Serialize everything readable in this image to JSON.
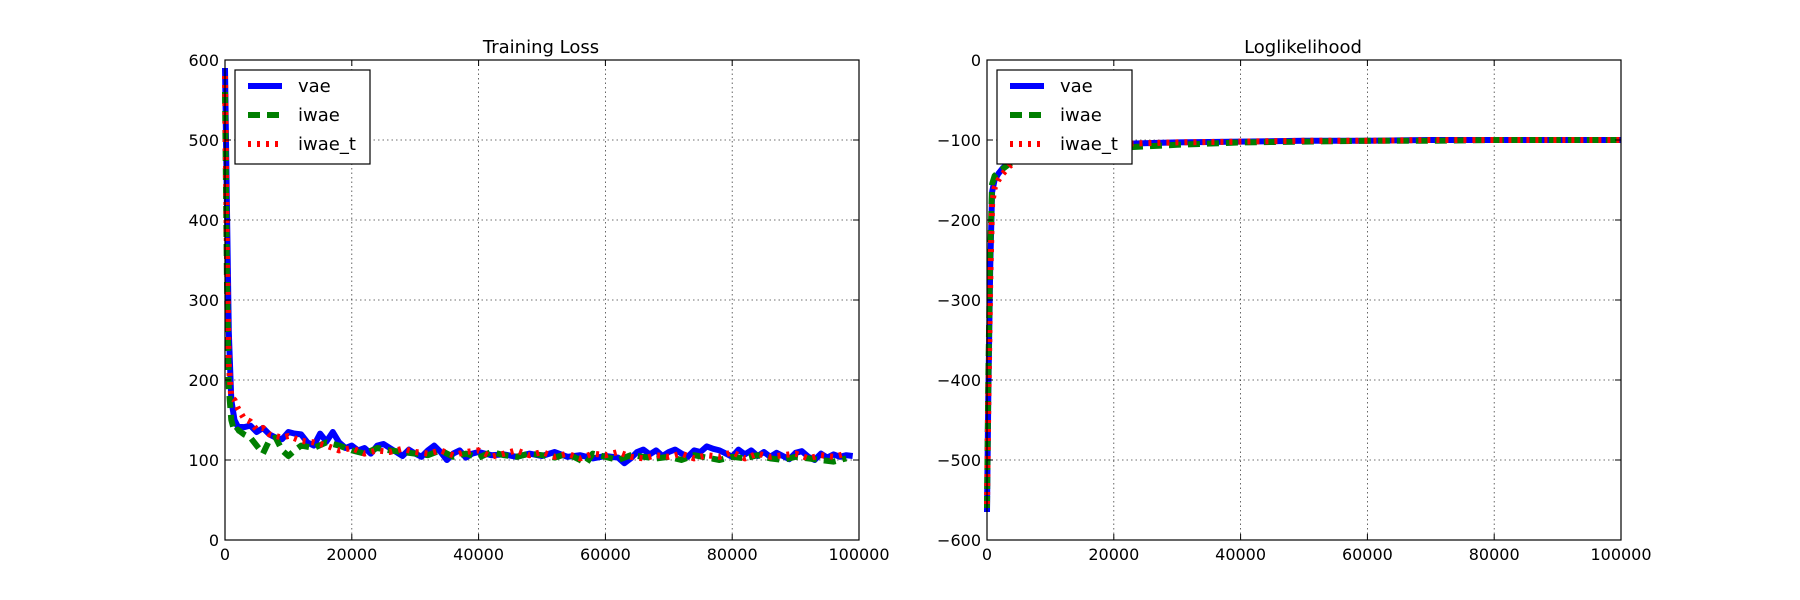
{
  "colors": {
    "vae": "#0000ff",
    "iwae": "#007f00",
    "iwae_t": "#ff0000"
  },
  "chart_data": [
    {
      "type": "line",
      "title": "Training Loss",
      "xlabel": "",
      "ylabel": "",
      "xlim": [
        0,
        100000
      ],
      "ylim": [
        0,
        600
      ],
      "xticks": [
        0,
        20000,
        40000,
        60000,
        80000,
        100000
      ],
      "xtick_labels": [
        "0",
        "20000",
        "40000",
        "60000",
        "80000",
        "100000"
      ],
      "yticks": [
        0,
        100,
        200,
        300,
        400,
        500,
        600
      ],
      "ytick_labels": [
        "0",
        "100",
        "200",
        "300",
        "400",
        "500",
        "600"
      ],
      "grid": true,
      "legend_position": "top-left",
      "series": [
        {
          "name": "vae",
          "style": "solid",
          "x": [
            0,
            300,
            600,
            1000,
            1500,
            2000,
            3000,
            4000,
            5000,
            6000,
            7000,
            8000,
            9000,
            10000,
            11000,
            12000,
            13000,
            14000,
            15000,
            16000,
            17000,
            18000,
            19000,
            20000,
            21000,
            22000,
            23000,
            24000,
            25000,
            26000,
            27000,
            28000,
            29000,
            30000,
            31000,
            32000,
            33000,
            34000,
            35000,
            36000,
            37000,
            38000,
            39000,
            40000,
            42000,
            44000,
            46000,
            48000,
            50000,
            52000,
            54000,
            56000,
            58000,
            60000,
            62000,
            63000,
            64000,
            65000,
            66000,
            67000,
            68000,
            69000,
            70000,
            71000,
            72000,
            73000,
            74000,
            75000,
            76000,
            77000,
            78000,
            79000,
            80000,
            81000,
            82000,
            83000,
            84000,
            85000,
            86000,
            87000,
            88000,
            89000,
            90000,
            91000,
            92000,
            93000,
            94000,
            95000,
            96000,
            97000,
            98000,
            99000
          ],
          "values": [
            590,
            420,
            260,
            175,
            150,
            142,
            141,
            143,
            135,
            140,
            132,
            128,
            126,
            135,
            133,
            132,
            122,
            118,
            133,
            123,
            135,
            122,
            115,
            118,
            112,
            115,
            108,
            118,
            120,
            115,
            110,
            105,
            113,
            108,
            104,
            112,
            118,
            110,
            100,
            108,
            112,
            103,
            108,
            110,
            106,
            107,
            104,
            108,
            105,
            110,
            104,
            106,
            102,
            105,
            103,
            96,
            102,
            110,
            113,
            107,
            112,
            105,
            110,
            113,
            108,
            104,
            112,
            110,
            117,
            114,
            112,
            108,
            104,
            113,
            107,
            112,
            105,
            110,
            104,
            109,
            105,
            101,
            109,
            111,
            104,
            100,
            108,
            103,
            107,
            104,
            106,
            105
          ]
        },
        {
          "name": "iwae",
          "style": "dashed",
          "x": [
            0,
            300,
            600,
            1000,
            1500,
            2000,
            3000,
            4000,
            5000,
            6000,
            7000,
            8000,
            9000,
            10000,
            11000,
            12000,
            14000,
            16000,
            18000,
            20000,
            22000,
            24000,
            26000,
            28000,
            30000,
            32000,
            34000,
            36000,
            38000,
            40000,
            42000,
            44000,
            46000,
            48000,
            50000,
            52000,
            54000,
            56000,
            57000,
            58000,
            60000,
            62000,
            64000,
            66000,
            68000,
            70000,
            72000,
            74000,
            76000,
            78000,
            80000,
            82000,
            84000,
            86000,
            88000,
            90000,
            92000,
            94000,
            96000,
            98000
          ],
          "values": [
            560,
            330,
            190,
            150,
            135,
            138,
            132,
            128,
            118,
            108,
            125,
            128,
            112,
            105,
            112,
            118,
            115,
            122,
            118,
            112,
            108,
            115,
            112,
            110,
            108,
            106,
            112,
            104,
            108,
            103,
            110,
            106,
            104,
            108,
            106,
            103,
            108,
            100,
            96,
            108,
            104,
            100,
            106,
            104,
            102,
            104,
            100,
            106,
            103,
            100,
            104,
            102,
            106,
            102,
            100,
            104,
            102,
            100,
            98,
            102
          ]
        },
        {
          "name": "iwae_t",
          "style": "dotted",
          "x": [
            0,
            300,
            600,
            1000,
            1500,
            2000,
            3000,
            4000,
            5000,
            6000,
            7000,
            8000,
            9000,
            10000,
            12000,
            14000,
            16000,
            18000,
            20000,
            22000,
            24000,
            26000,
            28000,
            30000,
            32000,
            34000,
            36000,
            38000,
            40000,
            42000,
            44000,
            46000,
            48000,
            50000,
            52000,
            54000,
            56000,
            58000,
            60000,
            62000,
            64000,
            66000,
            68000,
            70000,
            72000,
            74000,
            76000,
            78000,
            80000,
            82000,
            84000,
            86000,
            88000,
            90000,
            92000,
            94000,
            96000,
            98000
          ],
          "values": [
            580,
            360,
            220,
            178,
            175,
            165,
            152,
            148,
            138,
            140,
            132,
            130,
            128,
            130,
            124,
            122,
            118,
            112,
            115,
            108,
            112,
            110,
            114,
            110,
            108,
            112,
            106,
            110,
            112,
            104,
            108,
            112,
            106,
            110,
            104,
            108,
            102,
            108,
            106,
            110,
            104,
            102,
            106,
            104,
            108,
            102,
            106,
            104,
            110,
            102,
            108,
            104,
            106,
            108,
            102,
            106,
            104,
            108
          ]
        }
      ]
    },
    {
      "type": "line",
      "title": "Loglikelihood",
      "xlabel": "",
      "ylabel": "",
      "xlim": [
        0,
        100000
      ],
      "ylim": [
        -600,
        0
      ],
      "xticks": [
        0,
        20000,
        40000,
        60000,
        80000,
        100000
      ],
      "xtick_labels": [
        "0",
        "20000",
        "40000",
        "60000",
        "80000",
        "100000"
      ],
      "yticks": [
        -600,
        -500,
        -400,
        -300,
        -200,
        -100,
        0
      ],
      "ytick_labels": [
        "−600",
        "−500",
        "−400",
        "−300",
        "−200",
        "−100",
        "0"
      ],
      "grid": true,
      "legend_position": "top-left",
      "series": [
        {
          "name": "vae",
          "style": "solid",
          "x": [
            0,
            200,
            500,
            800,
            1200,
            1800,
            2500,
            3500,
            5000,
            7000,
            10000,
            15000,
            20000,
            30000,
            40000,
            50000,
            60000,
            70000,
            80000,
            90000,
            100000
          ],
          "values": [
            -565,
            -420,
            -260,
            -165,
            -150,
            -142,
            -135,
            -128,
            -122,
            -116,
            -111,
            -107,
            -105,
            -103,
            -102,
            -101,
            -101,
            -100,
            -100,
            -100,
            -100
          ]
        },
        {
          "name": "iwae",
          "style": "dashed",
          "x": [
            0,
            200,
            500,
            800,
            1200,
            1800,
            2500,
            3500,
            5000,
            7000,
            10000,
            15000,
            20000,
            30000,
            40000,
            50000,
            60000,
            70000,
            80000,
            90000,
            100000
          ],
          "values": [
            -560,
            -400,
            -240,
            -155,
            -145,
            -140,
            -136,
            -130,
            -125,
            -120,
            -117,
            -113,
            -110,
            -106,
            -103,
            -102,
            -101,
            -101,
            -100,
            -100,
            -100
          ]
        },
        {
          "name": "iwae_t",
          "style": "dotted",
          "x": [
            0,
            200,
            500,
            800,
            1200,
            1800,
            2500,
            3500,
            5000,
            7000,
            10000,
            15000,
            20000,
            30000,
            40000,
            50000,
            60000,
            70000,
            80000,
            90000,
            100000
          ],
          "values": [
            -555,
            -430,
            -280,
            -180,
            -160,
            -150,
            -142,
            -133,
            -124,
            -117,
            -112,
            -108,
            -105,
            -103,
            -102,
            -101,
            -101,
            -100,
            -100,
            -100,
            -100
          ]
        }
      ]
    }
  ]
}
